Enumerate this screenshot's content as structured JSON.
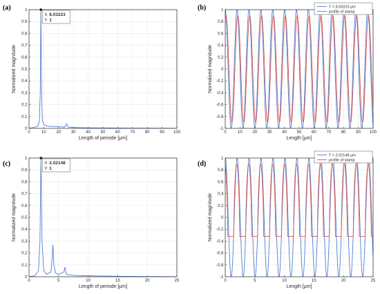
{
  "colors": {
    "blue": "#4a7fd1",
    "red": "#e0574f",
    "black": "#222222",
    "axis": "#262626",
    "grid": "#e6e6e6"
  },
  "chart_data": [
    {
      "id": "a",
      "panel_label": "(a)",
      "type": "line",
      "xlabel": "Length of periode [μm]",
      "ylabel": "Normalized magnitude",
      "xlim": [
        0,
        100
      ],
      "ylim": [
        0,
        1
      ],
      "xticks": [
        0,
        10,
        20,
        30,
        40,
        50,
        60,
        70,
        80,
        90,
        100
      ],
      "yticks": [
        0,
        0.1,
        0.2,
        0.3,
        0.4,
        0.5,
        0.6,
        0.7,
        0.8,
        0.9,
        1
      ],
      "grid": true,
      "series": [
        {
          "color": "#4a7fd1",
          "x": [
            0,
            2,
            4,
            6,
            7,
            7.6,
            8.03223,
            8.5,
            9,
            10,
            12,
            16,
            20,
            24,
            25.5,
            26,
            27,
            30,
            40,
            50,
            60,
            70,
            80,
            90,
            100
          ],
          "y": [
            0,
            0.005,
            0.01,
            0.02,
            0.06,
            0.3,
            1,
            0.3,
            0.07,
            0.03,
            0.02,
            0.015,
            0.015,
            0.01,
            0.04,
            0.02,
            0.01,
            0.008,
            0.005,
            0.004,
            0.003,
            0.002,
            0.002,
            0.001,
            0.001
          ]
        }
      ],
      "datatip": {
        "x_label": "X",
        "x_value": "8.03223",
        "y_label": "Y",
        "y_value": "1",
        "x": 8.03223,
        "y": 1
      }
    },
    {
      "id": "b",
      "panel_label": "(b)",
      "type": "line",
      "xlabel": "Length [μm]",
      "ylabel": "Normalized magnitude",
      "xlim": [
        0,
        100
      ],
      "ylim": [
        -1,
        1
      ],
      "xticks": [
        0,
        10,
        20,
        30,
        40,
        50,
        60,
        70,
        80,
        90,
        100
      ],
      "yticks": [
        -1,
        -0.8,
        -0.6,
        -0.4,
        -0.2,
        0,
        0.2,
        0.4,
        0.6,
        0.8,
        1
      ],
      "grid": true,
      "legend": {
        "position": "top-right",
        "entries": [
          "T = 8.03223 μm",
          "profile of stamp"
        ]
      },
      "series": [
        {
          "name": "T = 8.03223 μm",
          "color": "#4a7fd1",
          "model": "sine",
          "period": 8.03223,
          "amplitude": 1,
          "phase": 0
        },
        {
          "name": "profile of stamp",
          "color": "#e0574f",
          "model": "sine",
          "period": 8.03223,
          "amplitude": 0.9,
          "phase": -0.4
        }
      ]
    },
    {
      "id": "c",
      "panel_label": "(c)",
      "type": "line",
      "xlabel": "Length of periode [μm]",
      "ylabel": "Normalized magnitude",
      "xlim": [
        0,
        25
      ],
      "ylim": [
        0,
        1
      ],
      "xticks": [
        0,
        5,
        10,
        15,
        20,
        25
      ],
      "yticks": [
        0,
        0.1,
        0.2,
        0.3,
        0.4,
        0.5,
        0.6,
        0.7,
        0.8,
        0.9,
        1
      ],
      "grid": true,
      "series": [
        {
          "color": "#4a7fd1",
          "x": [
            0,
            1,
            1.6,
            1.85,
            2.02148,
            2.2,
            2.5,
            3,
            3.7,
            3.9,
            4.04,
            4.2,
            4.5,
            5,
            5.9,
            6.06,
            6.3,
            7,
            8,
            10,
            12,
            15,
            20,
            25
          ],
          "y": [
            0,
            0.01,
            0.05,
            0.3,
            1,
            0.3,
            0.05,
            0.02,
            0.04,
            0.15,
            0.27,
            0.1,
            0.03,
            0.02,
            0.04,
            0.08,
            0.02,
            0.015,
            0.01,
            0.008,
            0.006,
            0.004,
            0.002,
            0.001
          ]
        }
      ],
      "datatip": {
        "x_label": "X",
        "x_value": "2.02148",
        "y_label": "Y",
        "y_value": "1",
        "x": 2.02148,
        "y": 1
      }
    },
    {
      "id": "d",
      "panel_label": "(d)",
      "type": "line",
      "xlabel": "Length [μm]",
      "ylabel": "Normalized magnitude",
      "xlim": [
        0,
        25
      ],
      "ylim": [
        -1,
        1
      ],
      "xticks": [
        0,
        5,
        10,
        15,
        20,
        25
      ],
      "yticks": [
        -1,
        -0.8,
        -0.6,
        -0.4,
        -0.2,
        0,
        0.2,
        0.4,
        0.6,
        0.8,
        1
      ],
      "grid": true,
      "legend": {
        "position": "top-right",
        "entries": [
          "T = 2.02148 μm",
          "profile of stamp"
        ]
      },
      "series": [
        {
          "name": "T = 2.02148 μm",
          "color": "#4a7fd1",
          "model": "sine",
          "period": 2.02148,
          "amplitude": 1,
          "phase": 0
        },
        {
          "name": "profile of stamp",
          "color": "#e0574f",
          "model": "pulse",
          "period": 2.02148,
          "high": 0.9,
          "low": -0.32,
          "phase": 0.25
        }
      ]
    }
  ]
}
